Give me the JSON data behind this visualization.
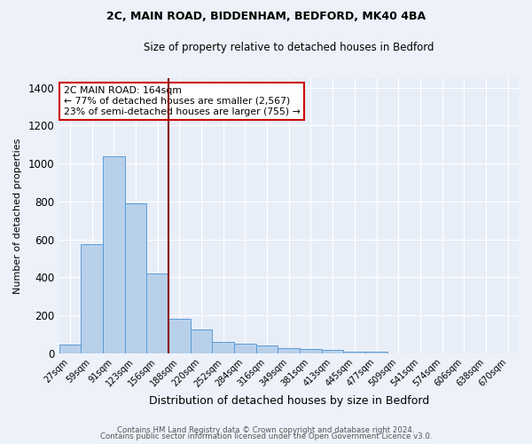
{
  "title1": "2C, MAIN ROAD, BIDDENHAM, BEDFORD, MK40 4BA",
  "title2": "Size of property relative to detached houses in Bedford",
  "xlabel": "Distribution of detached houses by size in Bedford",
  "ylabel": "Number of detached properties",
  "categories": [
    "27sqm",
    "59sqm",
    "91sqm",
    "123sqm",
    "156sqm",
    "188sqm",
    "220sqm",
    "252sqm",
    "284sqm",
    "316sqm",
    "349sqm",
    "381sqm",
    "413sqm",
    "445sqm",
    "477sqm",
    "509sqm",
    "541sqm",
    "574sqm",
    "606sqm",
    "638sqm",
    "670sqm"
  ],
  "values": [
    45,
    575,
    1040,
    790,
    420,
    183,
    125,
    58,
    50,
    43,
    27,
    23,
    18,
    10,
    10,
    0,
    0,
    0,
    0,
    0,
    0
  ],
  "bar_color": "#b8d0ea",
  "bar_edge_color": "#5b9bd5",
  "red_line_x": 4.5,
  "annotation_text": "2C MAIN ROAD: 164sqm\n← 77% of detached houses are smaller (2,567)\n23% of semi-detached houses are larger (755) →",
  "annotation_box_color": "#ffffff",
  "annotation_box_edge": "#cc0000",
  "ylim": [
    0,
    1450
  ],
  "yticks": [
    0,
    200,
    400,
    600,
    800,
    1000,
    1200,
    1400
  ],
  "bg_color": "#e8eef8",
  "grid_color": "#ffffff",
  "footer1": "Contains HM Land Registry data © Crown copyright and database right 2024.",
  "footer2": "Contains public sector information licensed under the Open Government Licence v3.0."
}
